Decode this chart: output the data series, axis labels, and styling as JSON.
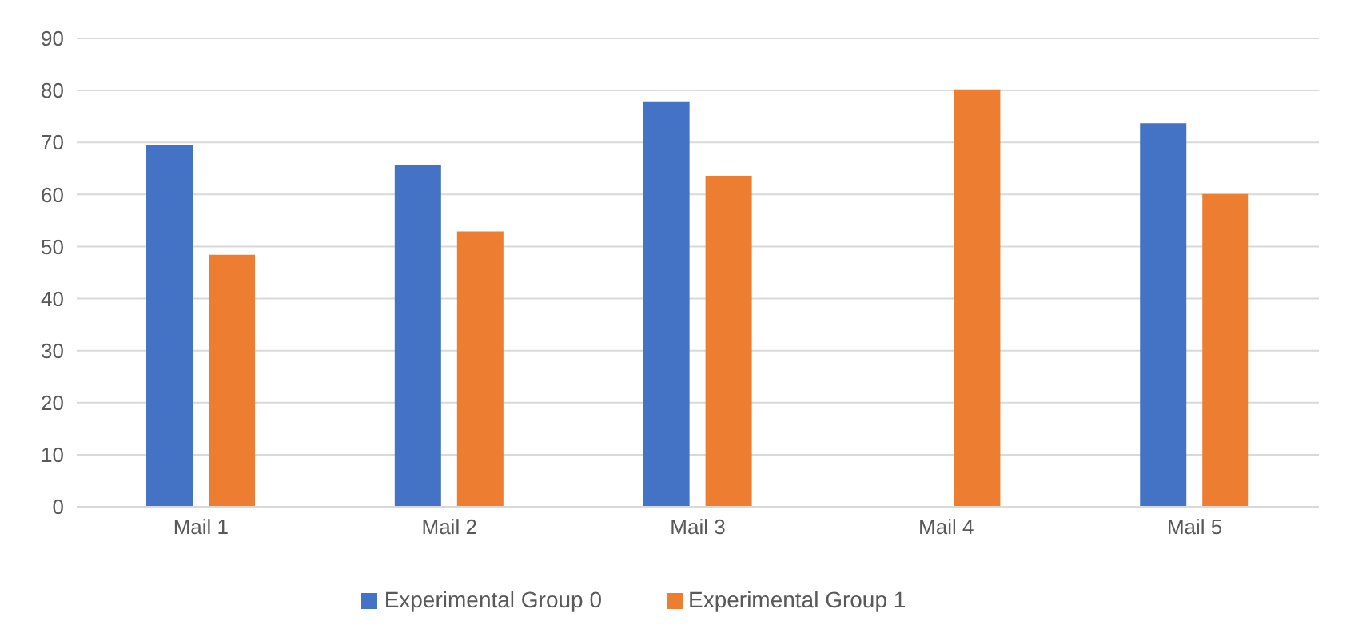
{
  "chart_data": {
    "type": "bar",
    "categories": [
      "Mail 1",
      "Mail 2",
      "Mail 3",
      "Mail 4",
      "Mail 5"
    ],
    "series": [
      {
        "name": "Experimental Group 0",
        "color": "#4472c4",
        "values": [
          69.5,
          65.6,
          77.9,
          null,
          73.7
        ]
      },
      {
        "name": "Experimental Group 1",
        "color": "#ed7d31",
        "values": [
          48.4,
          52.9,
          63.6,
          80.2,
          60.1
        ]
      }
    ],
    "ylim": [
      0,
      90
    ],
    "yticks": [
      0,
      10,
      20,
      30,
      40,
      50,
      60,
      70,
      80,
      90
    ],
    "grid": "y",
    "legend": "bottom"
  }
}
